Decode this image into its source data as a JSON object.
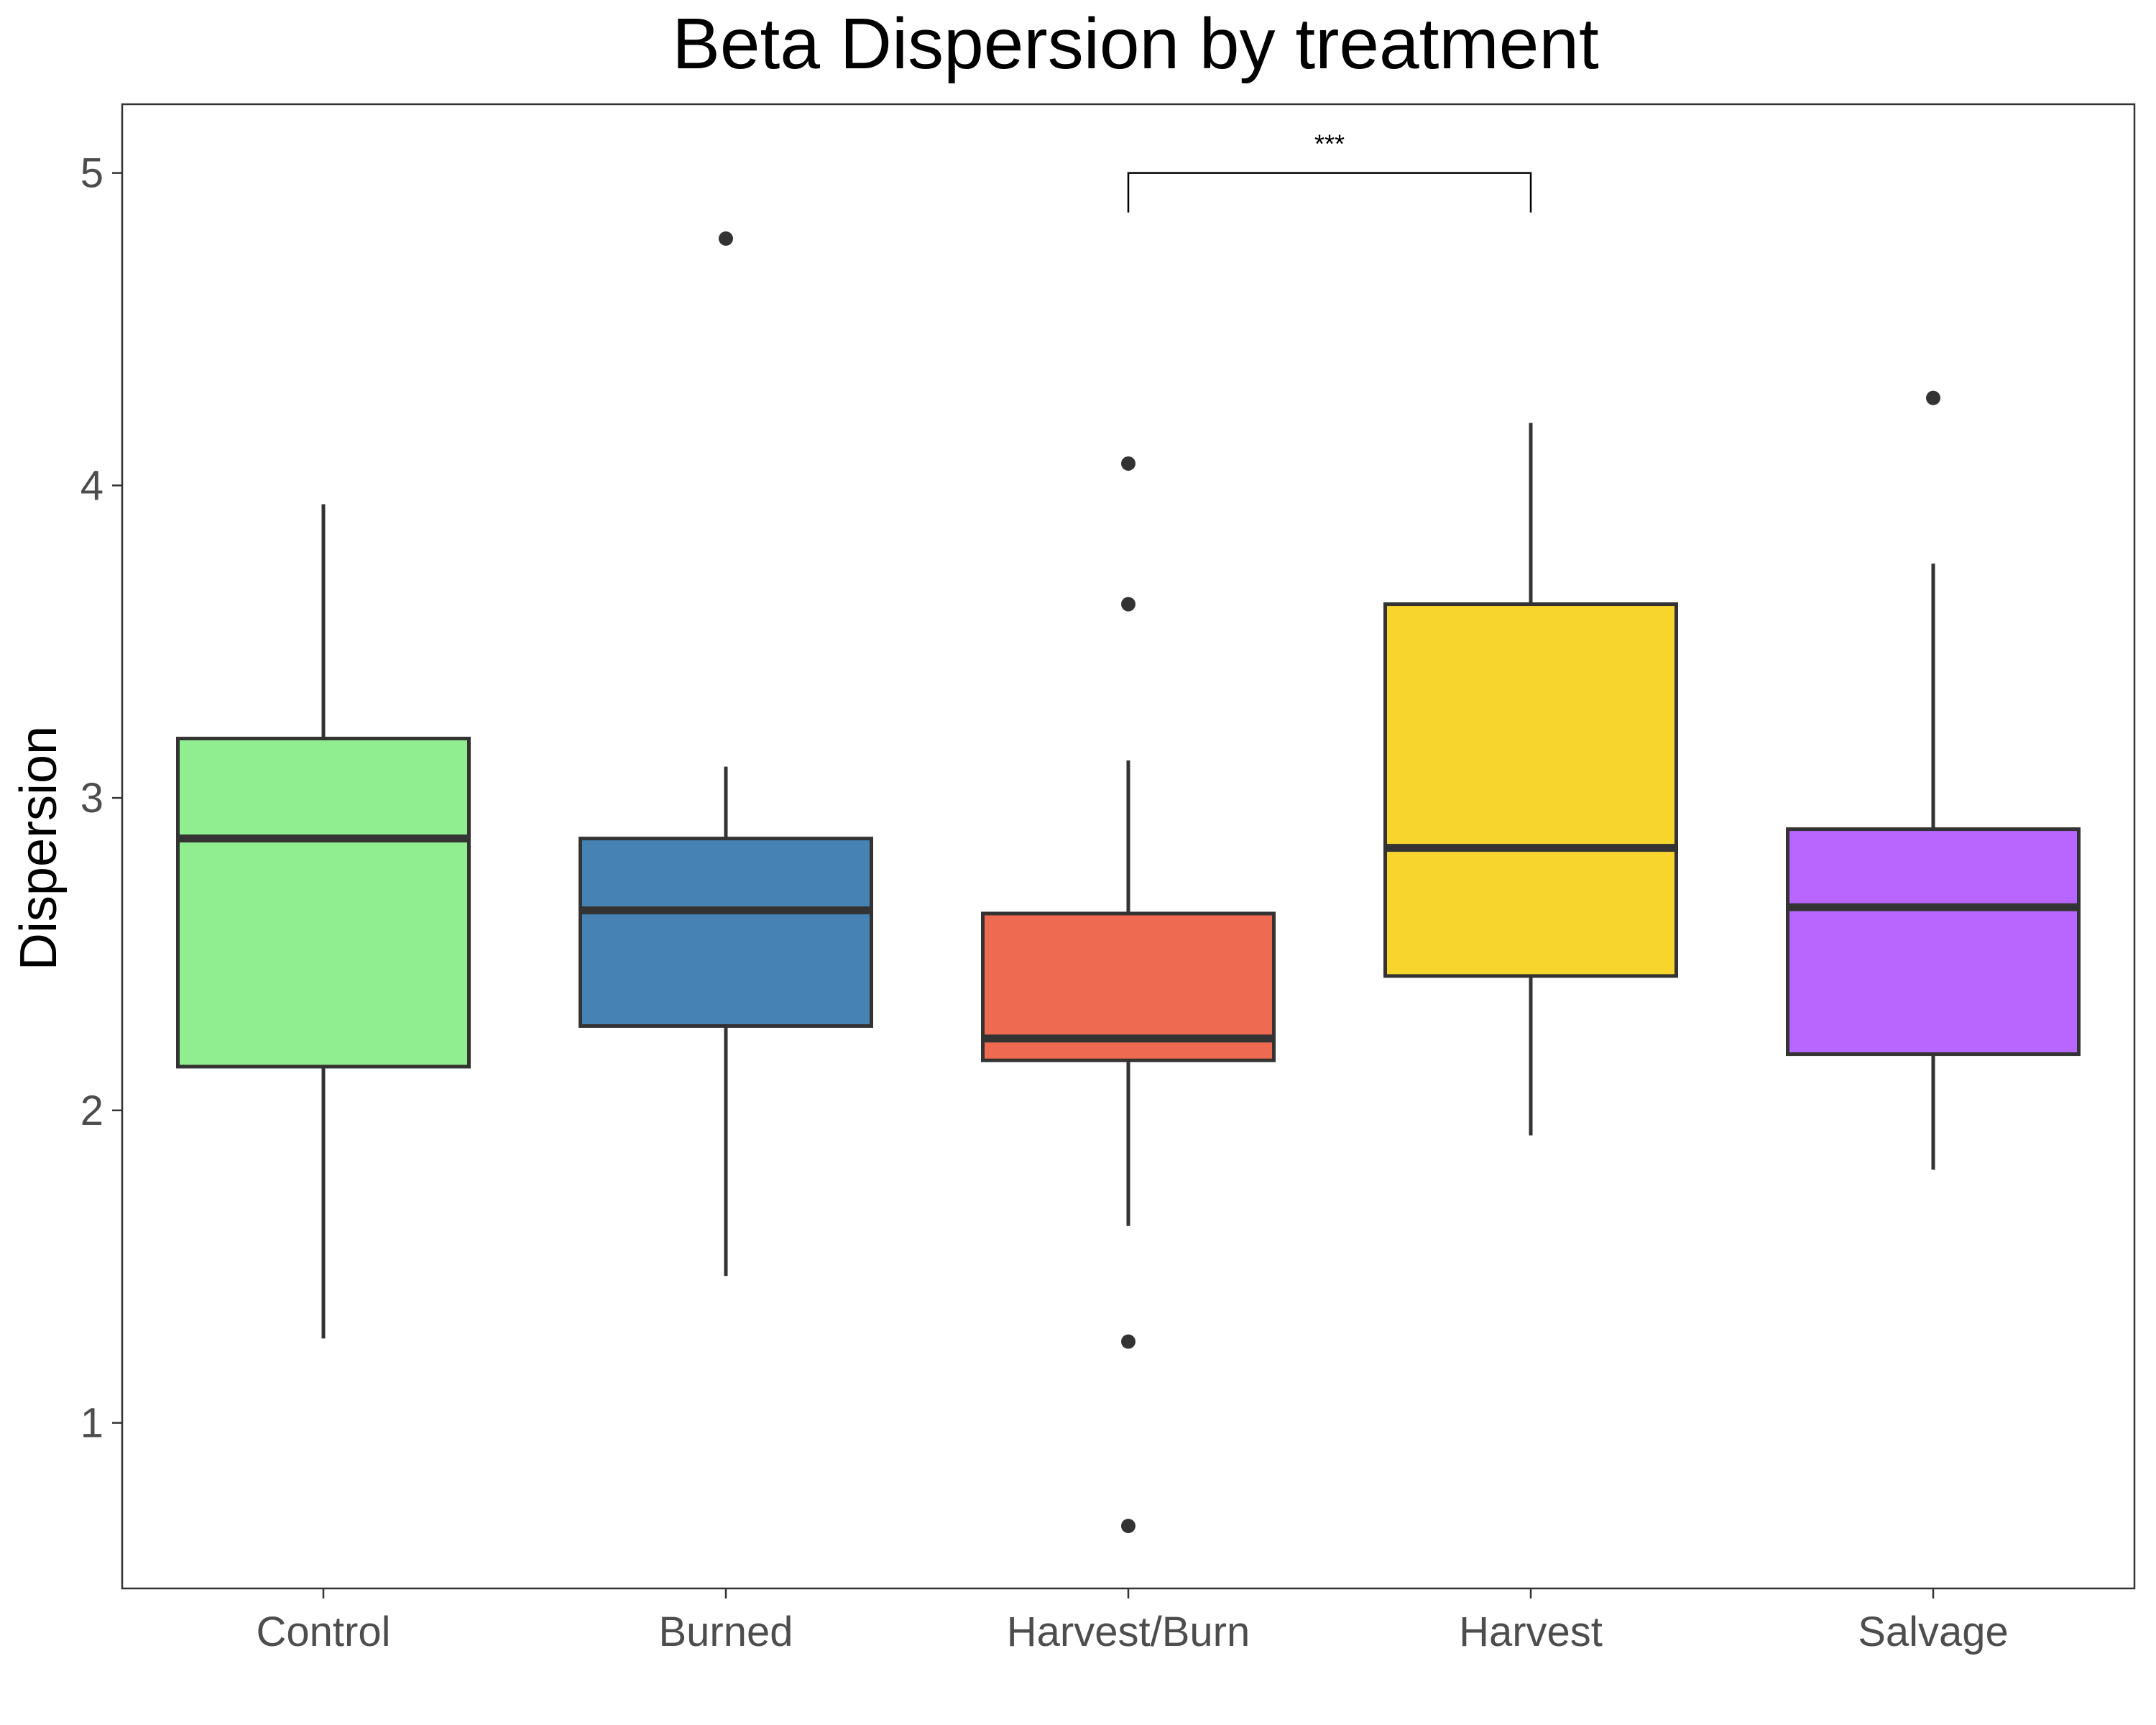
{
  "chart_data": {
    "type": "box",
    "title": "Beta Dispersion by treatment",
    "xlabel": "",
    "ylabel": "Dispersion",
    "ylim": [
      0.47,
      5.22
    ],
    "yticks": [
      1,
      2,
      3,
      4,
      5
    ],
    "grid": false,
    "categories": [
      "Control",
      "Burned",
      "Harvest/Burn",
      "Harvest",
      "Salvage"
    ],
    "colors": [
      "#90EE90",
      "#4682B4",
      "#EE6A50",
      "#F8D52D",
      "#B866FF"
    ],
    "boxes": [
      {
        "category": "Control",
        "whisker_low": 1.27,
        "q1": 2.14,
        "median": 2.87,
        "q3": 3.19,
        "whisker_high": 3.94,
        "outliers": []
      },
      {
        "category": "Burned",
        "whisker_low": 1.47,
        "q1": 2.27,
        "median": 2.64,
        "q3": 2.87,
        "whisker_high": 3.1,
        "outliers": [
          4.79
        ]
      },
      {
        "category": "Harvest/Burn",
        "whisker_low": 1.63,
        "q1": 2.16,
        "median": 2.23,
        "q3": 2.63,
        "whisker_high": 3.12,
        "outliers": [
          4.07,
          3.62,
          1.26,
          0.67
        ]
      },
      {
        "category": "Harvest",
        "whisker_low": 1.92,
        "q1": 2.43,
        "median": 2.84,
        "q3": 3.62,
        "whisker_high": 4.2,
        "outliers": []
      },
      {
        "category": "Salvage",
        "whisker_low": 1.81,
        "q1": 2.18,
        "median": 2.65,
        "q3": 2.9,
        "whisker_high": 3.75,
        "outliers": [
          4.28
        ]
      }
    ],
    "annotations": [
      {
        "type": "significance-bracket",
        "from": "Harvest/Burn",
        "to": "Harvest",
        "y": 5.0,
        "label": "***"
      }
    ],
    "colors_style": {
      "outline": "#333333",
      "axis": "#333333",
      "background": "#ffffff"
    }
  }
}
